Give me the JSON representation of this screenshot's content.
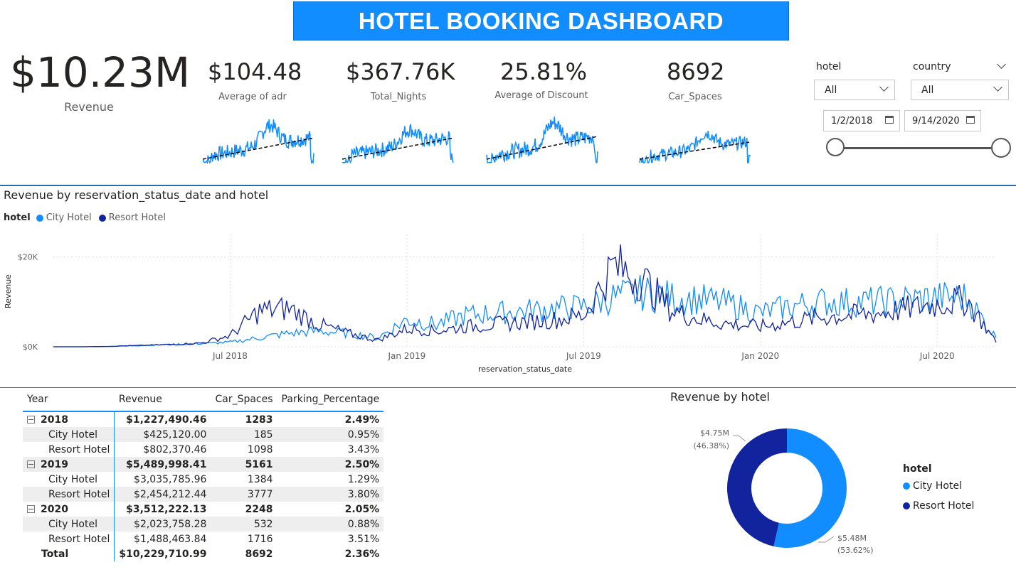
{
  "header": {
    "title": "HOTEL BOOKING DASHBOARD"
  },
  "kpis": {
    "revenue": {
      "value": "$10.23M",
      "label": "Revenue"
    },
    "adr": {
      "value": "$104.48",
      "label": "Average of adr"
    },
    "nights": {
      "value": "$367.76K",
      "label": "Total_Nights"
    },
    "discount": {
      "value": "25.81%",
      "label": "Average of Discount"
    },
    "car": {
      "value": "8692",
      "label": "Car_Spaces"
    }
  },
  "slicers": {
    "hotel": {
      "title": "hotel",
      "value": "All"
    },
    "country": {
      "title": "country",
      "value": "All"
    },
    "date": {
      "start": "1/2/2018",
      "end": "9/14/2020"
    }
  },
  "line_chart": {
    "title": "Revenue by reservation_status_date and hotel",
    "legend_title": "hotel",
    "ylabel": "Revenue",
    "xlabel": "reservation_status_date",
    "y_ticks": [
      "$20K",
      "$0K"
    ],
    "x_ticks": [
      "Jul 2018",
      "Jan 2019",
      "Jul 2019",
      "Jan 2020",
      "Jul 2020"
    ]
  },
  "matrix": {
    "headers": [
      "Year",
      "Revenue",
      "Car_Spaces",
      "Parking_Percentage"
    ],
    "rows": [
      {
        "label": "2018",
        "revenue": "$1,227,490.46",
        "car": "1283",
        "pct": "2.49%"
      },
      {
        "label": "City Hotel",
        "revenue": "$425,120.00",
        "car": "185",
        "pct": "0.95%"
      },
      {
        "label": "Resort Hotel",
        "revenue": "$802,370.46",
        "car": "1098",
        "pct": "3.43%"
      },
      {
        "label": "2019",
        "revenue": "$5,489,998.41",
        "car": "5161",
        "pct": "2.50%"
      },
      {
        "label": "City Hotel",
        "revenue": "$3,035,785.96",
        "car": "1384",
        "pct": "1.29%"
      },
      {
        "label": "Resort Hotel",
        "revenue": "$2,454,212.44",
        "car": "3777",
        "pct": "3.80%"
      },
      {
        "label": "2020",
        "revenue": "$3,512,222.13",
        "car": "2248",
        "pct": "2.05%"
      },
      {
        "label": "City Hotel",
        "revenue": "$2,023,758.28",
        "car": "532",
        "pct": "0.88%"
      },
      {
        "label": "Resort Hotel",
        "revenue": "$1,488,463.84",
        "car": "1716",
        "pct": "3.51%"
      },
      {
        "label": "Total",
        "revenue": "$10,229,710.99",
        "car": "8692",
        "pct": "2.36%"
      }
    ]
  },
  "donut": {
    "title": "Revenue by hotel",
    "legend_title": "hotel",
    "resort_label": "$4.75M",
    "resort_pct": "(46.38%)",
    "city_label": "$5.48M",
    "city_pct": "(53.62%)"
  },
  "colors": {
    "city": "#118DFF",
    "resort": "#12239E",
    "trend": "#000000",
    "accent": "#118DFF"
  },
  "chart_data": [
    {
      "type": "line",
      "title": "Revenue by reservation_status_date and hotel",
      "xlabel": "reservation_status_date",
      "ylabel": "Revenue",
      "x": [
        "2018-01",
        "2018-02",
        "2018-03",
        "2018-04",
        "2018-05",
        "2018-06",
        "2018-07",
        "2018-08",
        "2018-09",
        "2018-10",
        "2018-11",
        "2018-12",
        "2019-01",
        "2019-02",
        "2019-03",
        "2019-04",
        "2019-05",
        "2019-06",
        "2019-07",
        "2019-08",
        "2019-09",
        "2019-10",
        "2019-11",
        "2019-12",
        "2020-01",
        "2020-02",
        "2020-03",
        "2020-04",
        "2020-05",
        "2020-06",
        "2020-07",
        "2020-08",
        "2020-09"
      ],
      "series": [
        {
          "name": "City Hotel",
          "values": [
            0,
            0,
            100,
            300,
            500,
            700,
            1000,
            2000,
            3000,
            3500,
            3000,
            2000,
            6000,
            5000,
            7000,
            7500,
            8000,
            8500,
            9000,
            11000,
            12000,
            11000,
            10500,
            9500,
            7500,
            9000,
            10000,
            10000,
            10000,
            10500,
            11000,
            11000,
            2000
          ]
        },
        {
          "name": "Resort Hotel",
          "values": [
            0,
            0,
            100,
            300,
            500,
            800,
            2500,
            8000,
            8500,
            5000,
            3000,
            1500,
            4000,
            3500,
            4500,
            5000,
            5500,
            6000,
            7000,
            18000,
            15000,
            8000,
            6000,
            5000,
            4500,
            5500,
            6500,
            7000,
            7500,
            8500,
            9500,
            10500,
            1000
          ]
        }
      ],
      "y_ticks": [
        "$0K",
        "$20K"
      ],
      "ylim": [
        0,
        25000
      ],
      "x_ticks": [
        "Jul 2018",
        "Jan 2019",
        "Jul 2019",
        "Jan 2020",
        "Jul 2020"
      ],
      "legend": "top-left",
      "grid": true
    },
    {
      "type": "pie",
      "title": "Revenue by hotel",
      "categories": [
        "City Hotel",
        "Resort Hotel"
      ],
      "values": [
        5.48,
        4.75
      ],
      "percentages": [
        53.62,
        46.38
      ],
      "labels": [
        "$5.48M (53.62%)",
        "$4.75M (46.38%)"
      ],
      "legend": "right"
    }
  ]
}
